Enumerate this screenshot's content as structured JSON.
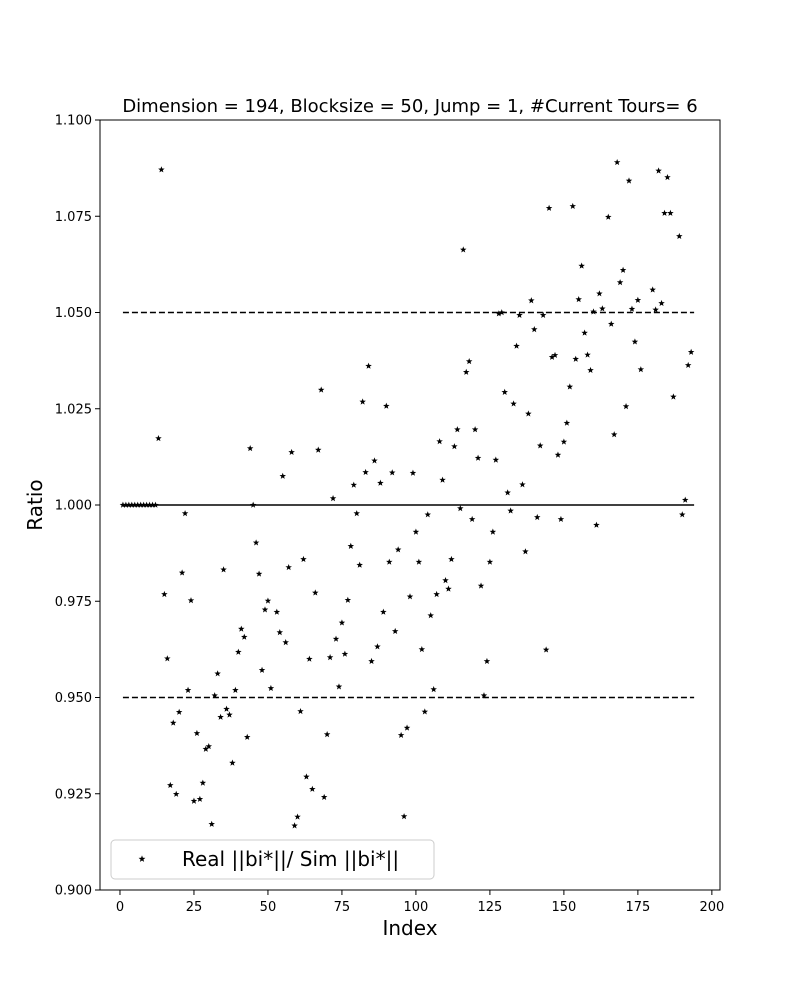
{
  "chart_data": {
    "type": "scatter",
    "title": "Dimension = 194, Blocksize = 50, Jump = 1, #Current Tours= 6",
    "xlabel": "Index",
    "ylabel": "Ratio",
    "xlim": [
      -6.75,
      202.75
    ],
    "ylim": [
      0.9,
      1.1
    ],
    "x_ticks": [
      0,
      25,
      50,
      75,
      100,
      125,
      150,
      175,
      200
    ],
    "y_ticks": [
      0.9,
      0.925,
      0.95,
      0.975,
      1.0,
      1.025,
      1.05,
      1.075,
      1.1
    ],
    "x_tick_labels": [
      "0",
      "25",
      "50",
      "75",
      "100",
      "125",
      "150",
      "175",
      "200"
    ],
    "y_tick_labels": [
      "0.900",
      "0.925",
      "0.950",
      "0.975",
      "1.000",
      "1.025",
      "1.050",
      "1.075",
      "1.100"
    ],
    "grid": false,
    "legend_position": "lower-left",
    "reference_lines": [
      {
        "y": 1.05,
        "x_range": [
          1,
          194
        ],
        "style": "dashed"
      },
      {
        "y": 1.0,
        "x_range": [
          1,
          194
        ],
        "style": "solid"
      },
      {
        "y": 0.95,
        "x_range": [
          1,
          194
        ],
        "style": "dashed"
      }
    ],
    "series": [
      {
        "name": "Real ||bi*||/ Sim ||bi*||",
        "marker": "star",
        "color": "#000000",
        "points": [
          [
            1,
            1.0
          ],
          [
            2,
            1.0
          ],
          [
            3,
            1.0
          ],
          [
            4,
            1.0
          ],
          [
            5,
            1.0
          ],
          [
            6,
            1.0
          ],
          [
            7,
            1.0
          ],
          [
            8,
            1.0
          ],
          [
            9,
            1.0
          ],
          [
            10,
            1.0
          ],
          [
            11,
            1.0
          ],
          [
            12,
            1.0
          ],
          [
            13,
            1.0173
          ],
          [
            14,
            1.0871
          ],
          [
            15,
            0.9768
          ],
          [
            16,
            0.9601
          ],
          [
            17,
            0.9272
          ],
          [
            18,
            0.9434
          ],
          [
            19,
            0.9249
          ],
          [
            20,
            0.9462
          ],
          [
            21,
            0.9824
          ],
          [
            22,
            0.9978
          ],
          [
            23,
            0.9519
          ],
          [
            24,
            0.9752
          ],
          [
            25,
            0.9231
          ],
          [
            26,
            0.9407
          ],
          [
            27,
            0.9236
          ],
          [
            28,
            0.9278
          ],
          [
            29,
            0.9366
          ],
          [
            30,
            0.9373
          ],
          [
            31,
            0.9171
          ],
          [
            32,
            0.9505
          ],
          [
            33,
            0.9562
          ],
          [
            34,
            0.9449
          ],
          [
            35,
            0.9832
          ],
          [
            36,
            0.947
          ],
          [
            37,
            0.9455
          ],
          [
            38,
            0.933
          ],
          [
            39,
            0.9519
          ],
          [
            40,
            0.9618
          ],
          [
            41,
            0.9678
          ],
          [
            42,
            0.9657
          ],
          [
            43,
            0.9397
          ],
          [
            44,
            1.0147
          ],
          [
            45,
            1.0
          ],
          [
            46,
            0.9902
          ],
          [
            47,
            0.9821
          ],
          [
            48,
            0.9571
          ],
          [
            49,
            0.9728
          ],
          [
            50,
            0.9751
          ],
          [
            51,
            0.9524
          ],
          [
            53,
            0.9722
          ],
          [
            54,
            0.9669
          ],
          [
            55,
            1.0075
          ],
          [
            56,
            0.9643
          ],
          [
            57,
            0.9838
          ],
          [
            58,
            1.0137
          ],
          [
            59,
            0.9167
          ],
          [
            60,
            0.919
          ],
          [
            61,
            0.9464
          ],
          [
            62,
            0.9859
          ],
          [
            63,
            0.9294
          ],
          [
            64,
            0.96
          ],
          [
            65,
            0.9262
          ],
          [
            66,
            0.9772
          ],
          [
            67,
            1.0143
          ],
          [
            68,
            1.0299
          ],
          [
            69,
            0.9241
          ],
          [
            70,
            0.9404
          ],
          [
            71,
            0.9604
          ],
          [
            72,
            1.0017
          ],
          [
            73,
            0.9652
          ],
          [
            74,
            0.9528
          ],
          [
            75,
            0.9694
          ],
          [
            76,
            0.9613
          ],
          [
            77,
            0.9753
          ],
          [
            78,
            0.9893
          ],
          [
            79,
            1.0052
          ],
          [
            80,
            0.9978
          ],
          [
            81,
            0.9844
          ],
          [
            82,
            1.0268
          ],
          [
            83,
            1.0085
          ],
          [
            84,
            1.0361
          ],
          [
            85,
            0.9594
          ],
          [
            86,
            1.0115
          ],
          [
            87,
            0.9632
          ],
          [
            88,
            1.0057
          ],
          [
            89,
            0.9722
          ],
          [
            90,
            1.0257
          ],
          [
            91,
            0.9852
          ],
          [
            92,
            1.0084
          ],
          [
            93,
            0.9672
          ],
          [
            94,
            0.9884
          ],
          [
            95,
            0.9402
          ],
          [
            96,
            0.9191
          ],
          [
            97,
            0.9421
          ],
          [
            98,
            0.9762
          ],
          [
            99,
            1.0083
          ],
          [
            100,
            0.993
          ],
          [
            101,
            0.9852
          ],
          [
            102,
            0.9625
          ],
          [
            103,
            0.9463
          ],
          [
            104,
            0.9975
          ],
          [
            105,
            0.9713
          ],
          [
            106,
            0.9521
          ],
          [
            107,
            0.9768
          ],
          [
            108,
            1.0165
          ],
          [
            109,
            1.0065
          ],
          [
            110,
            0.9804
          ],
          [
            111,
            0.9782
          ],
          [
            112,
            0.9859
          ],
          [
            113,
            1.0152
          ],
          [
            114,
            1.0196
          ],
          [
            115,
            0.9991
          ],
          [
            116,
            1.0663
          ],
          [
            117,
            1.0345
          ],
          [
            118,
            1.0373
          ],
          [
            119,
            0.9963
          ],
          [
            120,
            1.0196
          ],
          [
            121,
            1.0122
          ],
          [
            122,
            0.979
          ],
          [
            123,
            0.9505
          ],
          [
            124,
            0.9594
          ],
          [
            125,
            0.9852
          ],
          [
            126,
            0.993
          ],
          [
            127,
            1.0117
          ],
          [
            128,
            1.0497
          ],
          [
            129,
            1.05
          ],
          [
            130,
            1.0293
          ],
          [
            131,
            1.0032
          ],
          [
            132,
            0.9985
          ],
          [
            133,
            1.0263
          ],
          [
            134,
            1.0413
          ],
          [
            135,
            1.0493
          ],
          [
            136,
            1.0053
          ],
          [
            137,
            0.9879
          ],
          [
            138,
            1.0237
          ],
          [
            139,
            1.0531
          ],
          [
            140,
            1.0456
          ],
          [
            141,
            0.9968
          ],
          [
            142,
            1.0154
          ],
          [
            143,
            1.0493
          ],
          [
            144,
            0.9624
          ],
          [
            145,
            1.0771
          ],
          [
            146,
            1.0384
          ],
          [
            147,
            1.0389
          ],
          [
            148,
            1.013
          ],
          [
            149,
            0.9963
          ],
          [
            150,
            1.0164
          ],
          [
            151,
            1.0213
          ],
          [
            152,
            1.0307
          ],
          [
            153,
            1.0776
          ],
          [
            154,
            1.0379
          ],
          [
            155,
            1.0534
          ],
          [
            156,
            1.0621
          ],
          [
            157,
            1.0447
          ],
          [
            158,
            1.039
          ],
          [
            159,
            1.035
          ],
          [
            160,
            1.0502
          ],
          [
            161,
            0.9948
          ],
          [
            162,
            1.0549
          ],
          [
            163,
            1.051
          ],
          [
            165,
            1.0748
          ],
          [
            166,
            1.047
          ],
          [
            167,
            1.0183
          ],
          [
            168,
            1.089
          ],
          [
            169,
            1.0578
          ],
          [
            170,
            1.061
          ],
          [
            171,
            1.0256
          ],
          [
            172,
            1.0842
          ],
          [
            173,
            1.0509
          ],
          [
            174,
            1.0424
          ],
          [
            175,
            1.0532
          ],
          [
            176,
            1.0352
          ],
          [
            180,
            1.0559
          ],
          [
            181,
            1.0507
          ],
          [
            182,
            1.0868
          ],
          [
            183,
            1.0524
          ],
          [
            184,
            1.0758
          ],
          [
            185,
            1.0851
          ],
          [
            186,
            1.0758
          ],
          [
            187,
            1.0281
          ],
          [
            189,
            1.0698
          ],
          [
            190,
            0.9975
          ],
          [
            191,
            1.0013
          ],
          [
            192,
            1.0363
          ],
          [
            193,
            1.0397
          ]
        ]
      }
    ]
  }
}
